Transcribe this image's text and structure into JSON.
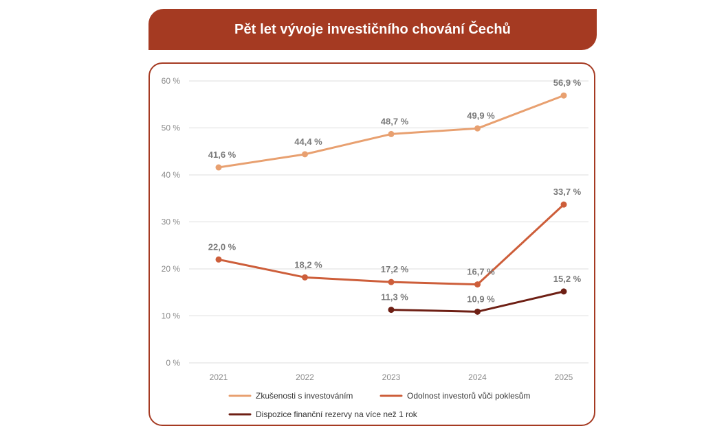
{
  "title": "Pět let vývoje investičního chování Čechů",
  "chart_data": {
    "type": "line",
    "categories": [
      "2021",
      "2022",
      "2023",
      "2024",
      "2025"
    ],
    "y_ticks": [
      "0 %",
      "10 %",
      "20 %",
      "30 %",
      "40 %",
      "50 %",
      "60 %"
    ],
    "ylim": [
      0,
      60
    ],
    "grid": true,
    "legend_position": "bottom",
    "series": [
      {
        "name": "Zkušenosti s investováním",
        "color": "#e8a070",
        "values": [
          41.6,
          44.4,
          48.7,
          49.9,
          56.9
        ],
        "labels": [
          "41,6 %",
          "44,4 %",
          "48,7 %",
          "49,9 %",
          "56,9 %"
        ]
      },
      {
        "name": "Odolnost investorů vůči poklesům",
        "color": "#cd5e3a",
        "values": [
          22.0,
          18.2,
          17.2,
          16.7,
          33.7
        ],
        "labels": [
          "22,0 %",
          "18,2 %",
          "17,2 %",
          "16,7 %",
          "33,7 %"
        ]
      },
      {
        "name": "Dispozice finanční rezervy na více než 1 rok",
        "color": "#6e1f14",
        "values": [
          null,
          null,
          11.3,
          10.9,
          15.2
        ],
        "labels": [
          null,
          null,
          "11,3 %",
          "10,9 %",
          "15,2 %"
        ]
      }
    ]
  }
}
